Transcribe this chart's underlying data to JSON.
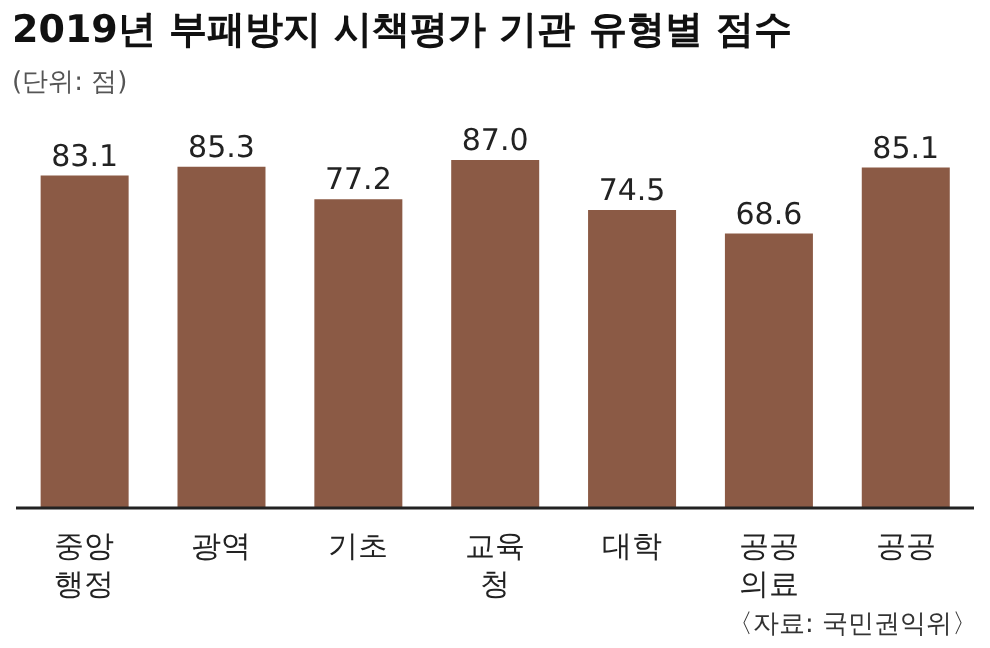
{
  "chart_data": {
    "type": "bar",
    "title": "2019년 부패방지 시책평가 기관 유형별 점수",
    "subtitle": "(단위: 점)",
    "categories": [
      "중앙\n행정",
      "광역",
      "기초",
      "교육\n청",
      "대학",
      "공공\n의료",
      "공공"
    ],
    "values": [
      83.1,
      85.3,
      77.2,
      87.0,
      74.5,
      68.6,
      85.1
    ],
    "value_labels": [
      "83.1",
      "85.3",
      "77.2",
      "87.0",
      "74.5",
      "68.6",
      "85.1"
    ],
    "color": "#8b5a45",
    "grid": false,
    "legend": false,
    "annotations": [
      "〈자료: 국민권익위〉"
    ]
  }
}
